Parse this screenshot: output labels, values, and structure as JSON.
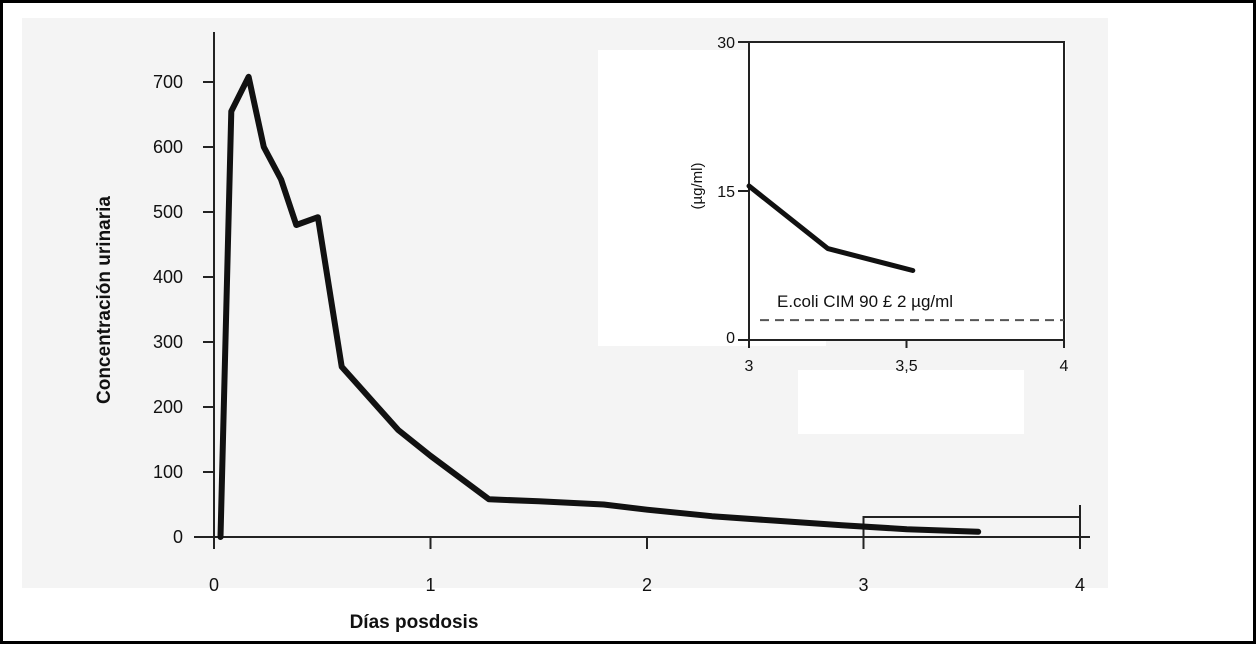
{
  "chart_data": [
    {
      "type": "line",
      "xlabel": "Días posdosis",
      "ylabel": "Concentración urinaria",
      "xlim": [
        0,
        4
      ],
      "ylim": [
        0,
        780
      ],
      "x_ticks": [
        "0",
        "1",
        "2",
        "3",
        "4"
      ],
      "y_ticks": [
        "0",
        "100",
        "200",
        "300",
        "400",
        "500",
        "600",
        "700"
      ],
      "x_tick_values": [
        0,
        1,
        2,
        3,
        4
      ],
      "y_tick_values": [
        0,
        100,
        200,
        300,
        400,
        500,
        600,
        700
      ],
      "grid": false,
      "series": [
        {
          "color": "#111111",
          "x": [
            0.03,
            0.08,
            0.16,
            0.23,
            0.31,
            0.38,
            0.48,
            0.59,
            0.85,
            1.0,
            1.27,
            1.5,
            1.8,
            2.0,
            2.3,
            2.6,
            2.9,
            3.2,
            3.53
          ],
          "y": [
            0,
            655,
            708,
            600,
            550,
            480,
            492,
            262,
            165,
            125,
            58,
            55,
            50,
            42,
            32,
            25,
            18,
            12,
            8
          ]
        }
      ],
      "zoom_box": {
        "x": [
          3,
          4
        ],
        "y": [
          0,
          30
        ]
      }
    },
    {
      "type": "line",
      "inset": true,
      "ylabel": "(µg/ml)",
      "xlim": [
        3,
        4
      ],
      "ylim": [
        0,
        30
      ],
      "x_ticks": [
        "3",
        "3,5",
        "4"
      ],
      "y_ticks": [
        "0",
        "15",
        "30"
      ],
      "x_tick_values": [
        3,
        3.5,
        4
      ],
      "y_tick_values": [
        0,
        15,
        30
      ],
      "series": [
        {
          "color": "#111111",
          "x": [
            3,
            3.25,
            3.52
          ],
          "y": [
            15.5,
            9.2,
            7.0
          ]
        }
      ],
      "reference_line": {
        "y": 2,
        "style": "dashed",
        "label": "E.coli CIM 90 £ 2 µg/ml"
      }
    }
  ]
}
